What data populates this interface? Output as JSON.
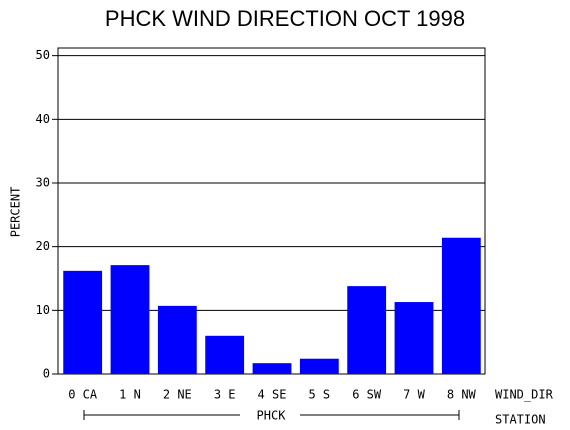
{
  "chart_data": {
    "type": "bar",
    "title": "PHCK WIND DIRECTION OCT 1998",
    "y_label": "PERCENT",
    "x_label": "WIND_DIR",
    "group_label": "PHCK",
    "group_axis_label": "STATION",
    "categories": [
      "0 CA",
      "1 N",
      "2 NE",
      "3 E",
      "4 SE",
      "5 S",
      "6 SW",
      "7 W",
      "8 NW"
    ],
    "values": [
      16.2,
      17.1,
      10.7,
      6.0,
      1.7,
      2.4,
      13.8,
      11.3,
      21.4
    ],
    "color": "#0000ff",
    "ylim": [
      0,
      51.2
    ],
    "yticks": [
      0,
      10,
      20,
      30,
      40,
      50
    ],
    "grid": true
  }
}
